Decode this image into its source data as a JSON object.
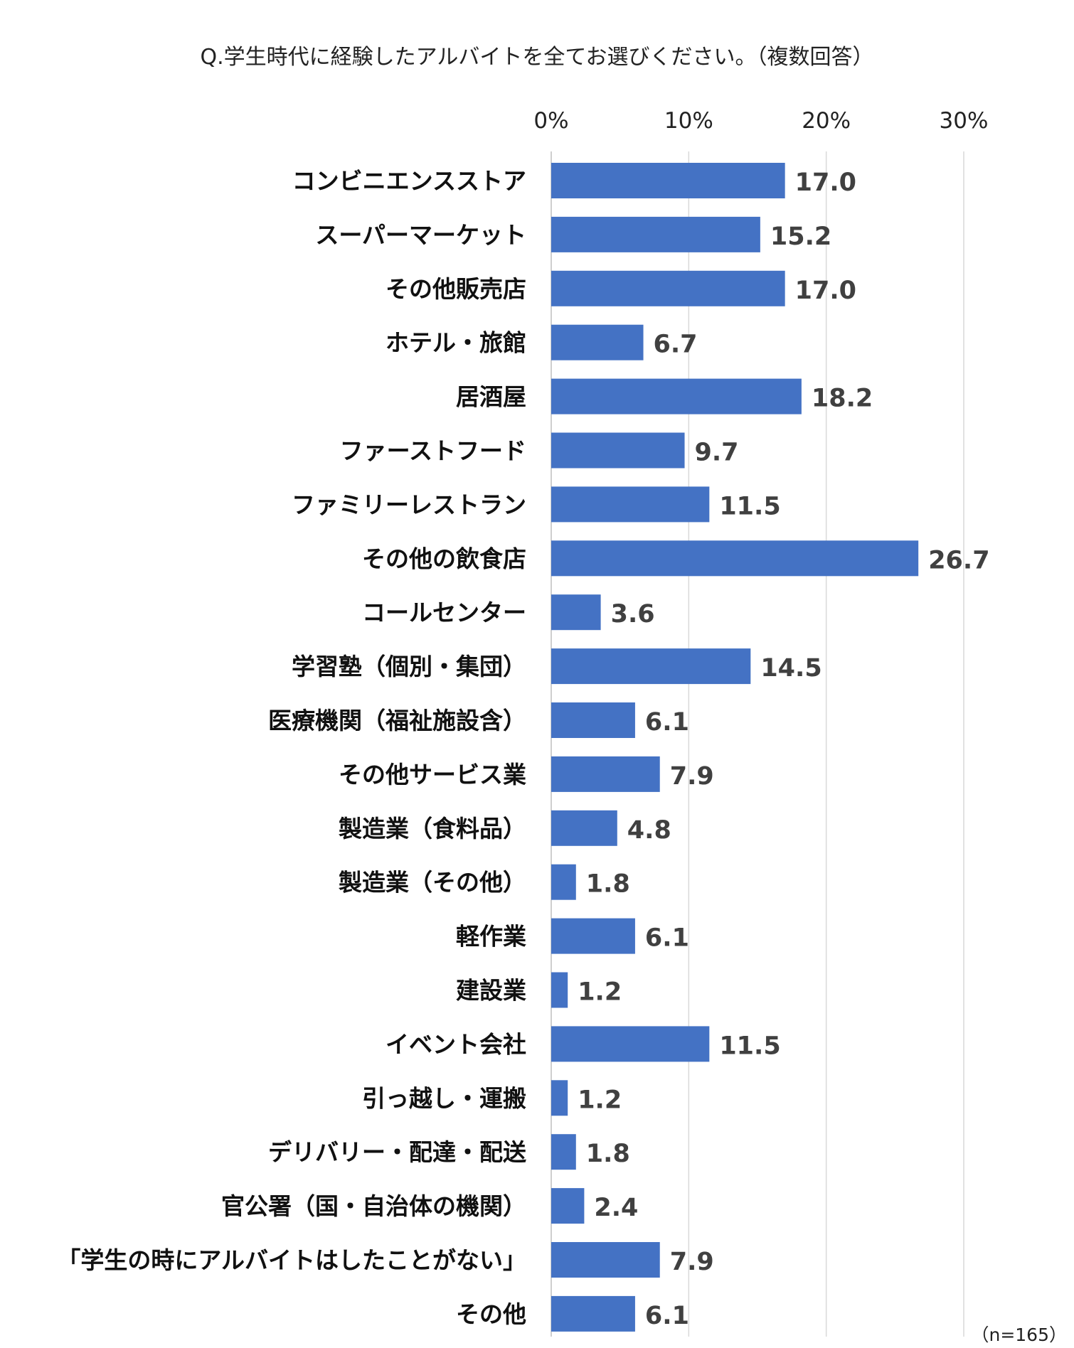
{
  "chart_data": {
    "type": "bar",
    "orientation": "horizontal",
    "title": "Q.学生時代に経験したアルバイトを全てお選びください。（複数回答）",
    "note": "（n=165）",
    "xlim": [
      0,
      30
    ],
    "ticks": [
      "0%",
      "10%",
      "20%",
      "30%"
    ],
    "tick_values": [
      0,
      10,
      20,
      30
    ],
    "grid": true,
    "bar_color": "#4472C4",
    "categories": [
      "コンビニエンスストア",
      "スーパーマーケット",
      "その他販売店",
      "ホテル・旅館",
      "居酒屋",
      "ファーストフード",
      "ファミリーレストラン",
      "その他の飲食店",
      "コールセンター",
      "学習塾（個別・集団）",
      "医療機関（福祉施設含）",
      "その他サービス業",
      "製造業（食料品）",
      "製造業（その他）",
      "軽作業",
      "建設業",
      "イベント会社",
      "引っ越し・運搬",
      "デリバリー・配達・配送",
      "官公署（国・自治体の機関）",
      "「学生の時にアルバイトはしたことがない」",
      "その他"
    ],
    "values": [
      17.0,
      15.2,
      17.0,
      6.7,
      18.2,
      9.7,
      11.5,
      26.7,
      3.6,
      14.5,
      6.1,
      7.9,
      4.8,
      1.8,
      6.1,
      1.2,
      11.5,
      1.2,
      1.8,
      2.4,
      7.9,
      6.1
    ],
    "value_labels": [
      "17.0",
      "15.2",
      "17.0",
      "6.7",
      "18.2",
      "9.7",
      "11.5",
      "26.7",
      "3.6",
      "14.5",
      "6.1",
      "7.9",
      "4.8",
      "1.8",
      "6.1",
      "1.2",
      "11.5",
      "1.2",
      "1.8",
      "2.4",
      "7.9",
      "6.1"
    ]
  }
}
